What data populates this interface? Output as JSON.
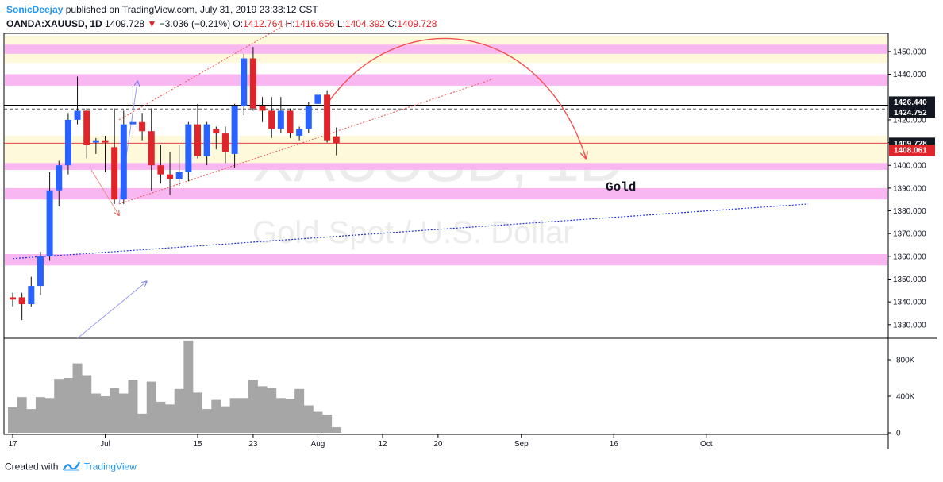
{
  "header": {
    "author": "SonicDeejay",
    "published": "published on TradingView.com, July 31, 2019 23:33:12 CST",
    "symbol": "OANDA:XAUUSD, 1D",
    "price": "1409.728",
    "arrow": "▼",
    "change": "−3.036 (−0.21%)",
    "open_label": "O:",
    "open": "1412.764",
    "high_label": "H:",
    "high": "1416.656",
    "low_label": "L:",
    "low": "1404.392",
    "close_label": "C:",
    "close": "1409.728"
  },
  "footer": {
    "created_with": "Created with",
    "brand": "TradingView",
    "logo_icon": "tradingview-logo-icon"
  },
  "colors": {
    "bull": "#2962ff",
    "bear": "#e0242a",
    "volume": "#a6a6a6",
    "pink_zone": "#f9b7f1",
    "yellow_zone": "#fff9dc",
    "trend": "#ef5350",
    "support": "#2233cc",
    "price_tag": "#e0242a",
    "label_tag": "#131722"
  },
  "chart_data": {
    "type": "candlestick",
    "watermark": {
      "symbol": "XAUUSD, 1D",
      "description": "Gold Spot / U.S. Dollar"
    },
    "annotation": "Gold",
    "y_axis": {
      "min": 1324,
      "max": 1458,
      "ticks": [
        1330,
        1340,
        1350,
        1360,
        1370,
        1380,
        1390,
        1400,
        1410,
        1420,
        1440,
        1450
      ],
      "tick_labels": [
        "1330.000",
        "1340.000",
        "1350.000",
        "1360.000",
        "1370.000",
        "1380.000",
        "1390.000",
        "1400.000",
        "1410.000",
        "1420.000",
        "1440.000",
        "1450.000"
      ]
    },
    "price_tags": [
      {
        "value": 1426.44,
        "label": "1426.440",
        "style": "dark",
        "line": "solid"
      },
      {
        "value": 1424.752,
        "label": "1424.752",
        "style": "dark",
        "line": "dashed"
      },
      {
        "value": 1409.728,
        "label": "1409.728",
        "style": "dark",
        "line": "thin-red"
      },
      {
        "value": 1408.061,
        "label": "1408.061",
        "style": "red",
        "line": "none"
      }
    ],
    "x_axis": {
      "labels": [
        "17",
        "Jul",
        "15",
        "23",
        "Aug",
        "12",
        "20",
        "Sep",
        "16",
        "Oct"
      ],
      "label_bar_index": [
        0,
        10,
        20,
        26,
        33,
        40,
        46,
        55,
        65,
        75
      ]
    },
    "volume_axis": {
      "min": 0,
      "max": 1000000,
      "ticks": [
        0,
        400000,
        800000
      ],
      "tick_labels": [
        "0",
        "400K",
        "800K"
      ]
    },
    "candles": [
      {
        "o": 1342,
        "h": 1344,
        "l": 1338,
        "c": 1341,
        "v": 280000
      },
      {
        "o": 1342,
        "h": 1344,
        "l": 1332,
        "c": 1339,
        "v": 390000
      },
      {
        "o": 1339,
        "h": 1351,
        "l": 1338,
        "c": 1347,
        "v": 260000
      },
      {
        "o": 1347,
        "h": 1362,
        "l": 1343,
        "c": 1360,
        "v": 390000
      },
      {
        "o": 1360,
        "h": 1397,
        "l": 1358,
        "c": 1389,
        "v": 380000
      },
      {
        "o": 1389,
        "h": 1402,
        "l": 1382,
        "c": 1400,
        "v": 590000
      },
      {
        "o": 1400,
        "h": 1423,
        "l": 1396,
        "c": 1420,
        "v": 600000
      },
      {
        "o": 1420,
        "h": 1439,
        "l": 1418,
        "c": 1424,
        "v": 760000
      },
      {
        "o": 1424,
        "h": 1425,
        "l": 1403,
        "c": 1409,
        "v": 630000
      },
      {
        "o": 1410,
        "h": 1412,
        "l": 1405,
        "c": 1411,
        "v": 430000
      },
      {
        "o": 1411,
        "h": 1413,
        "l": 1397,
        "c": 1410,
        "v": 400000
      },
      {
        "o": 1408,
        "h": 1425,
        "l": 1383,
        "c": 1385,
        "v": 490000
      },
      {
        "o": 1385,
        "h": 1424,
        "l": 1383,
        "c": 1418,
        "v": 430000
      },
      {
        "o": 1418,
        "h": 1435,
        "l": 1412,
        "c": 1419,
        "v": 580000
      },
      {
        "o": 1419,
        "h": 1423,
        "l": 1411,
        "c": 1415,
        "v": 210000
      },
      {
        "o": 1415,
        "h": 1425,
        "l": 1389,
        "c": 1400,
        "v": 560000
      },
      {
        "o": 1400,
        "h": 1409,
        "l": 1392,
        "c": 1396,
        "v": 340000
      },
      {
        "o": 1396,
        "h": 1406,
        "l": 1387,
        "c": 1394,
        "v": 310000
      },
      {
        "o": 1394,
        "h": 1409,
        "l": 1391,
        "c": 1397,
        "v": 480000
      },
      {
        "o": 1397,
        "h": 1419,
        "l": 1393,
        "c": 1418,
        "v": 1010000
      },
      {
        "o": 1418,
        "h": 1427,
        "l": 1403,
        "c": 1404,
        "v": 440000
      },
      {
        "o": 1404,
        "h": 1419,
        "l": 1400,
        "c": 1418,
        "v": 260000
      },
      {
        "o": 1416,
        "h": 1417,
        "l": 1407,
        "c": 1414,
        "v": 360000
      },
      {
        "o": 1414,
        "h": 1417,
        "l": 1401,
        "c": 1406,
        "v": 290000
      },
      {
        "o": 1405,
        "h": 1427,
        "l": 1399,
        "c": 1426,
        "v": 380000
      },
      {
        "o": 1426,
        "h": 1449,
        "l": 1422,
        "c": 1447,
        "v": 380000
      },
      {
        "o": 1447,
        "h": 1452,
        "l": 1424,
        "c": 1425,
        "v": 580000
      },
      {
        "o": 1426,
        "h": 1430,
        "l": 1419,
        "c": 1424,
        "v": 510000
      },
      {
        "o": 1424,
        "h": 1430,
        "l": 1412,
        "c": 1416,
        "v": 490000
      },
      {
        "o": 1416,
        "h": 1430,
        "l": 1414,
        "c": 1424,
        "v": 380000
      },
      {
        "o": 1424,
        "h": 1425,
        "l": 1412,
        "c": 1414,
        "v": 370000
      },
      {
        "o": 1413,
        "h": 1417,
        "l": 1411,
        "c": 1416,
        "v": 480000
      },
      {
        "o": 1416,
        "h": 1428,
        "l": 1414,
        "c": 1426,
        "v": 300000
      },
      {
        "o": 1427,
        "h": 1433,
        "l": 1423,
        "c": 1431,
        "v": 230000
      },
      {
        "o": 1431,
        "h": 1433,
        "l": 1410,
        "c": 1411,
        "v": 200000
      },
      {
        "o": 1412.764,
        "h": 1416.656,
        "l": 1404.392,
        "c": 1409.728,
        "v": 60000
      }
    ],
    "zones": [
      {
        "from": 1449,
        "to": 1453,
        "kind": "pink"
      },
      {
        "from": 1445,
        "to": 1457,
        "kind": "yellow"
      },
      {
        "from": 1435,
        "to": 1440,
        "kind": "pink"
      },
      {
        "from": 1398,
        "to": 1401,
        "kind": "pink"
      },
      {
        "from": 1398,
        "to": 1413,
        "kind": "yellow"
      },
      {
        "from": 1385,
        "to": 1390,
        "kind": "pink"
      },
      {
        "from": 1356,
        "to": 1361,
        "kind": "pink"
      }
    ],
    "lines": [
      {
        "kind": "channel-upper",
        "x1": 11.5,
        "y1": 1420,
        "x2": 30,
        "y2": 1463
      },
      {
        "kind": "channel-lower",
        "x1": 11.5,
        "y1": 1383,
        "x2": 52,
        "y2": 1438
      },
      {
        "kind": "support",
        "x1": 0,
        "y1": 1359,
        "x2": 86,
        "y2": 1383
      },
      {
        "kind": "blue-arrow",
        "x1": 7,
        "y1": 1324,
        "x2": 14.5,
        "y2": 1349
      },
      {
        "kind": "blue-arrow",
        "x1": 11.5,
        "y1": 1383,
        "x2": 13.5,
        "y2": 1437
      },
      {
        "kind": "red-arrow",
        "x1": 8.5,
        "y1": 1398,
        "x2": 11.5,
        "y2": 1378
      }
    ],
    "projection": {
      "start_bar": 34,
      "start_value": 1427,
      "peak_bar": 46,
      "peak_value": 1456,
      "end_bar": 62,
      "end_value": 1403
    }
  }
}
